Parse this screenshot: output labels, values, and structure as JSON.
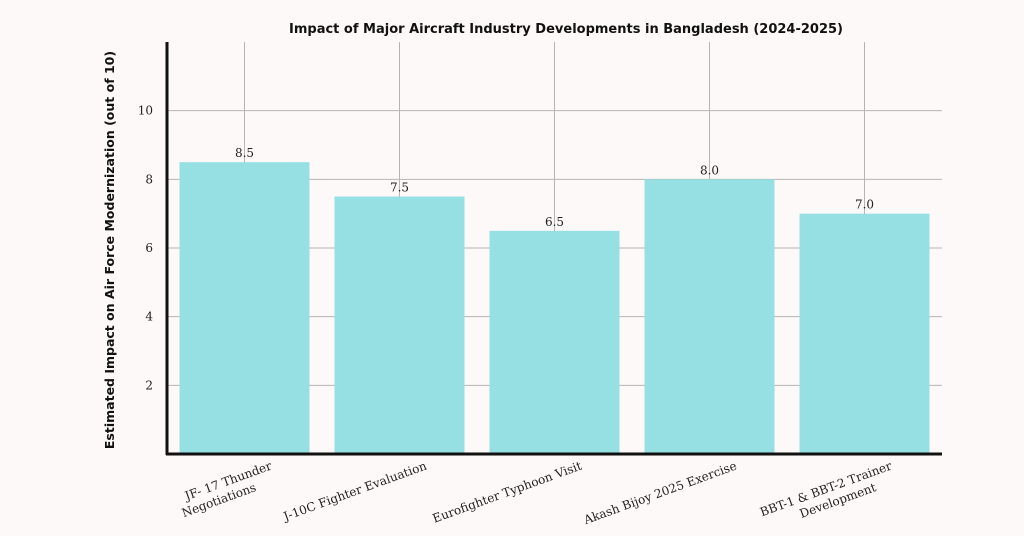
{
  "chart_data": {
    "type": "bar",
    "title": "Impact of Major Aircraft Industry Developments in Bangladesh (2024-2025)",
    "xlabel": "",
    "ylabel": "Estimated Impact on Air Force Modernization (out of 10)",
    "categories": [
      "JF- 17 Thunder Negotiations",
      "J-10C Fighter Evaluation",
      "Eurofighter Typhoon Visit",
      "Akash Bijoy 2025 Exercise",
      "BBT-1 & BBT-2 Trainer Development"
    ],
    "values": [
      8.5,
      7.5,
      6.5,
      8.0,
      7.0
    ],
    "value_labels": [
      "8.5",
      "7.5",
      "6.5",
      "8.0",
      "7.0"
    ],
    "yticks": [
      "2",
      "4",
      "6",
      "8",
      "10"
    ],
    "ylim": [
      0,
      12
    ],
    "grid": true,
    "colors": {
      "bar": "#96e0e3",
      "grid": "#b5b5b5",
      "axis": "#111111",
      "background": "#fdf9f8"
    }
  }
}
